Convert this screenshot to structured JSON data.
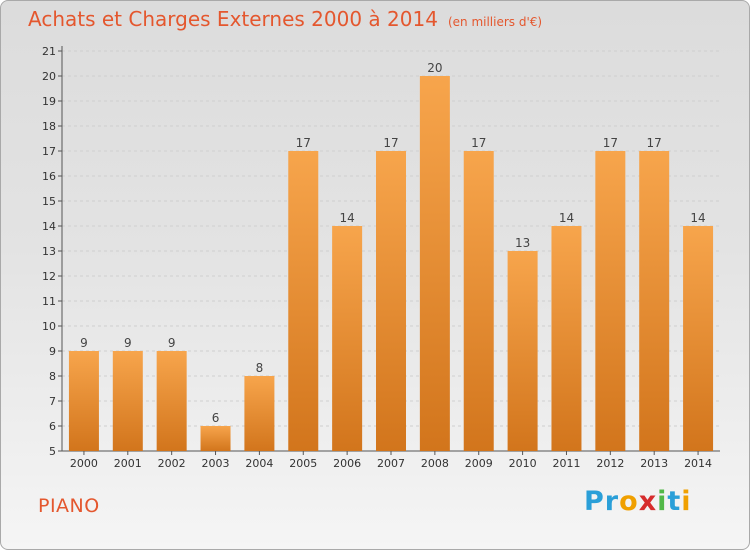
{
  "chart_title": "Achats et Charges Externes 2000 à 2014",
  "unit_label": "(en milliers d'€)",
  "commune": "PIANO",
  "brand": {
    "letters": [
      "P",
      "r",
      "o",
      "x",
      "i",
      "t",
      "i"
    ],
    "colors": [
      "#2a9fd8",
      "#2a9fd8",
      "#f0a000",
      "#d62c2c",
      "#52b848",
      "#2a9fd8",
      "#f0a000"
    ]
  },
  "colors": {
    "bar_light": "#f7a54c",
    "bar_dark": "#d2751c",
    "title": "#e4572e"
  },
  "chart_data": {
    "type": "bar",
    "title": "Achats et Charges Externes 2000 à 2014",
    "subtitle": "(en milliers d'€)",
    "categories": [
      "2000",
      "2001",
      "2002",
      "2003",
      "2004",
      "2005",
      "2006",
      "2007",
      "2008",
      "2009",
      "2010",
      "2011",
      "2012",
      "2013",
      "2014"
    ],
    "values": [
      9,
      9,
      9,
      6,
      8,
      17,
      14,
      17,
      20,
      17,
      13,
      14,
      17,
      17,
      14
    ],
    "ylim": [
      5,
      21
    ],
    "yticks": [
      5,
      6,
      7,
      8,
      9,
      10,
      11,
      12,
      13,
      14,
      15,
      16,
      17,
      18,
      19,
      20,
      21
    ],
    "grid": "horizontal-dashed",
    "xlabel": "",
    "ylabel": ""
  }
}
